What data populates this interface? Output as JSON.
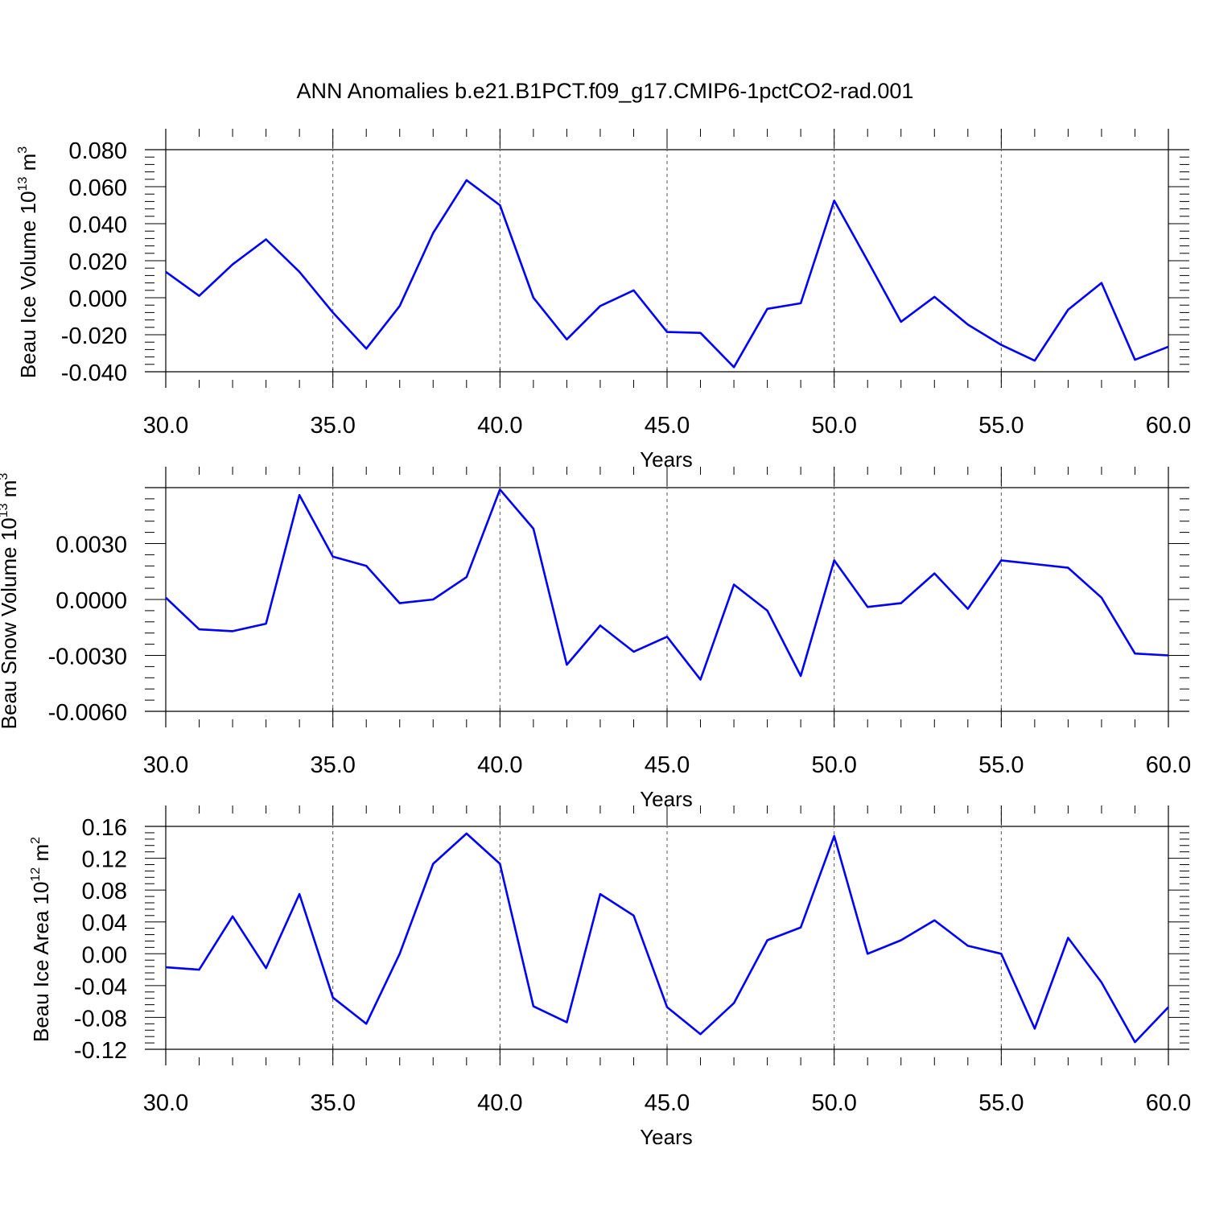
{
  "title": "ANN Anomalies b.e21.B1PCT.f09_g17.CMIP6-1pctCO2-rad.001",
  "chart_data": [
    {
      "type": "line",
      "ylabel_main": "Beau Ice Volume 10",
      "ylabel_exp": "13",
      "ylabel_unit": " m",
      "ylabel_unit_exp": "3",
      "xlabel": "Years",
      "xlim": [
        30,
        60
      ],
      "ylim": [
        -0.04,
        0.08
      ],
      "xticks": [
        {
          "value": 30,
          "label": "30.0"
        },
        {
          "value": 35,
          "label": "35.0"
        },
        {
          "value": 40,
          "label": "40.0"
        },
        {
          "value": 45,
          "label": "45.0"
        },
        {
          "value": 50,
          "label": "50.0"
        },
        {
          "value": 55,
          "label": "55.0"
        },
        {
          "value": 60,
          "label": "60.0"
        }
      ],
      "yticks": [
        {
          "value": -0.04,
          "label": "-0.040"
        },
        {
          "value": -0.02,
          "label": "-0.020"
        },
        {
          "value": 0.0,
          "label": "0.000"
        },
        {
          "value": 0.02,
          "label": "0.020"
        },
        {
          "value": 0.04,
          "label": "0.040"
        },
        {
          "value": 0.06,
          "label": "0.060"
        },
        {
          "value": 0.08,
          "label": "0.080"
        }
      ],
      "x": [
        30,
        31,
        32,
        33,
        34,
        35,
        36,
        37,
        38,
        39,
        40,
        41,
        42,
        43,
        44,
        45,
        46,
        47,
        48,
        49,
        50,
        51,
        52,
        53,
        54,
        55,
        56,
        57,
        58,
        59,
        60
      ],
      "series": [
        {
          "color": "#0000ff",
          "values": [
            0.014,
            0.001,
            0.018,
            0.0315,
            0.014,
            -0.008,
            -0.0275,
            -0.0045,
            0.035,
            0.0635,
            0.05,
            0.0,
            -0.0225,
            -0.0045,
            0.004,
            -0.0185,
            -0.019,
            -0.0375,
            -0.006,
            -0.003,
            0.0525,
            0.02,
            -0.013,
            0.0005,
            -0.0145,
            -0.0255,
            -0.034,
            -0.0065,
            0.008,
            -0.0335,
            -0.0265
          ]
        }
      ]
    },
    {
      "type": "line",
      "ylabel_main": "Beau Snow Volume 10",
      "ylabel_exp": "13",
      "ylabel_unit": " m",
      "ylabel_unit_exp": "3",
      "xlabel": "Years",
      "xlim": [
        30,
        60
      ],
      "ylim": [
        -0.006,
        0.006
      ],
      "xticks": [
        {
          "value": 30,
          "label": "30.0"
        },
        {
          "value": 35,
          "label": "35.0"
        },
        {
          "value": 40,
          "label": "40.0"
        },
        {
          "value": 45,
          "label": "45.0"
        },
        {
          "value": 50,
          "label": "50.0"
        },
        {
          "value": 55,
          "label": "55.0"
        },
        {
          "value": 60,
          "label": "60.0"
        }
      ],
      "yticks": [
        {
          "value": -0.006,
          "label": "-0.0060"
        },
        {
          "value": -0.003,
          "label": "-0.0030"
        },
        {
          "value": 0.0,
          "label": "0.0000"
        },
        {
          "value": 0.003,
          "label": "0.0030"
        }
      ],
      "x": [
        30,
        31,
        32,
        33,
        34,
        35,
        36,
        37,
        38,
        39,
        40,
        41,
        42,
        43,
        44,
        45,
        46,
        47,
        48,
        49,
        50,
        51,
        52,
        53,
        54,
        55,
        56,
        57,
        58,
        59,
        60
      ],
      "series": [
        {
          "color": "#0000ff",
          "values": [
            0.0001,
            -0.0016,
            -0.0017,
            -0.0013,
            0.0056,
            0.0023,
            0.0018,
            -0.0002,
            0.0,
            0.0012,
            0.0059,
            0.0038,
            -0.0035,
            -0.0014,
            -0.0028,
            -0.002,
            -0.0043,
            0.0008,
            -0.0006,
            -0.0041,
            0.0021,
            -0.0004,
            -0.0002,
            0.0014,
            -0.0005,
            0.0021,
            0.0019,
            0.0017,
            0.0001,
            -0.0029,
            -0.003
          ]
        }
      ]
    },
    {
      "type": "line",
      "ylabel_main": "Beau Ice Area 10",
      "ylabel_exp": "12",
      "ylabel_unit": " m",
      "ylabel_unit_exp": "2",
      "xlabel": "Years",
      "xlim": [
        30,
        60
      ],
      "ylim": [
        -0.12,
        0.16
      ],
      "xticks": [
        {
          "value": 30,
          "label": "30.0"
        },
        {
          "value": 35,
          "label": "35.0"
        },
        {
          "value": 40,
          "label": "40.0"
        },
        {
          "value": 45,
          "label": "45.0"
        },
        {
          "value": 50,
          "label": "50.0"
        },
        {
          "value": 55,
          "label": "55.0"
        },
        {
          "value": 60,
          "label": "60.0"
        }
      ],
      "yticks": [
        {
          "value": -0.12,
          "label": "-0.12"
        },
        {
          "value": -0.08,
          "label": "-0.08"
        },
        {
          "value": -0.04,
          "label": "-0.04"
        },
        {
          "value": 0.0,
          "label": "0.00"
        },
        {
          "value": 0.04,
          "label": "0.04"
        },
        {
          "value": 0.08,
          "label": "0.08"
        },
        {
          "value": 0.12,
          "label": "0.12"
        },
        {
          "value": 0.16,
          "label": "0.16"
        }
      ],
      "x": [
        30,
        31,
        32,
        33,
        34,
        35,
        36,
        37,
        38,
        39,
        40,
        41,
        42,
        43,
        44,
        45,
        46,
        47,
        48,
        49,
        50,
        51,
        52,
        53,
        54,
        55,
        56,
        57,
        58,
        59,
        60
      ],
      "series": [
        {
          "color": "#0000ff",
          "values": [
            -0.017,
            -0.02,
            0.047,
            -0.018,
            0.075,
            -0.055,
            -0.088,
            0.0,
            0.113,
            0.151,
            0.113,
            -0.066,
            -0.086,
            0.075,
            0.048,
            -0.067,
            -0.101,
            -0.062,
            0.017,
            0.033,
            0.148,
            0.0,
            0.017,
            0.042,
            0.01,
            0.0,
            -0.094,
            0.02,
            -0.036,
            -0.111,
            -0.067
          ]
        }
      ]
    }
  ]
}
